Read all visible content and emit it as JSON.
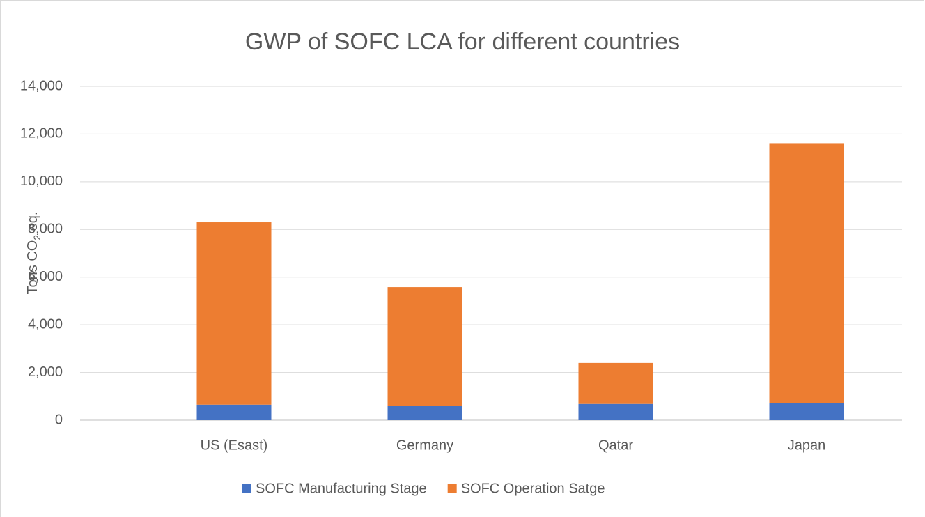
{
  "chart_data": {
    "type": "stacked_bar",
    "title": "GWP of SOFC LCA for different countries",
    "y_label": {
      "main": "Tons CO",
      "sub": "2",
      "tail": " eq."
    },
    "categories": [
      "US (Esast)",
      "Germany",
      "Qatar",
      "Japan"
    ],
    "series": [
      {
        "name": "SOFC Manufacturing Stage",
        "color": "#4472c4",
        "values": [
          650,
          600,
          680,
          730
        ]
      },
      {
        "name": "SOFC Operation Satge",
        "color": "#ed7d31",
        "values": [
          7650,
          4980,
          1720,
          10890
        ]
      }
    ],
    "ylim": [
      0,
      14000
    ],
    "yticks": [
      0,
      {
        "value": 2000,
        "label": "2,000"
      },
      {
        "value": 4000,
        "label": "4,000"
      },
      {
        "value": 6000,
        "label": "6,000"
      },
      {
        "value": 8000,
        "label": "8,000"
      },
      {
        "value": 10000,
        "label": "10,000"
      },
      {
        "value": 12000,
        "label": "12,000"
      },
      {
        "value": 14000,
        "label": "14,000"
      }
    ],
    "grid": true,
    "legend": "bottom"
  }
}
